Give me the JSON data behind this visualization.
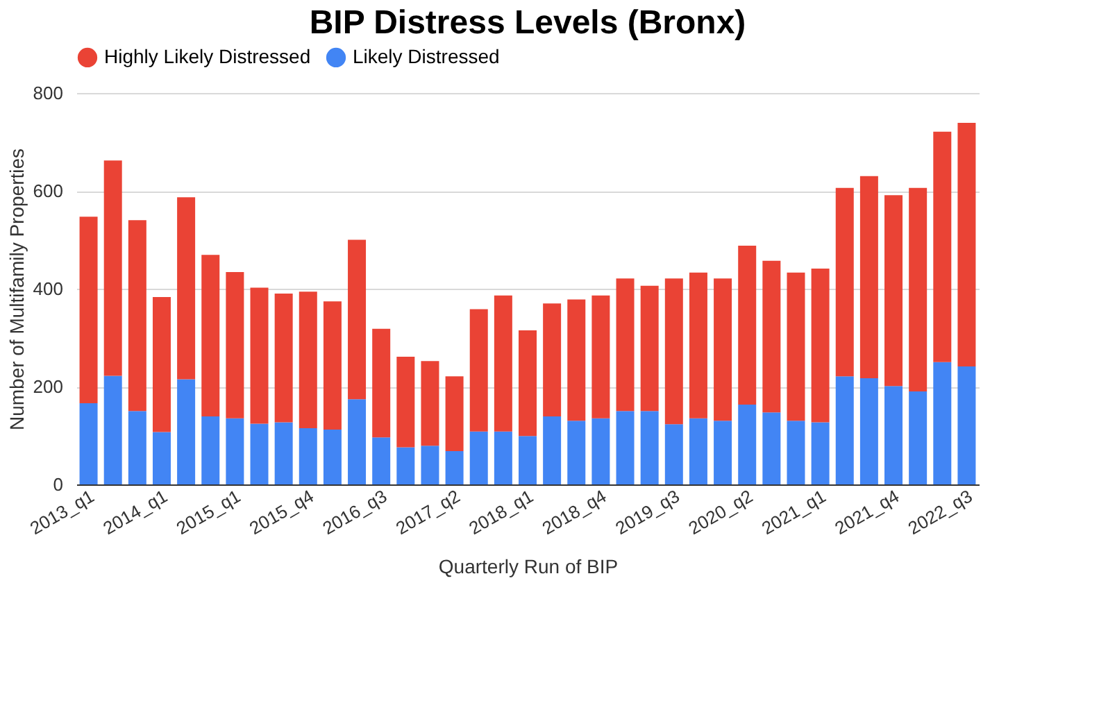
{
  "chart_data": {
    "type": "bar",
    "stacked": true,
    "title": "BIP Distress Levels (Bronx)",
    "xlabel": "Quarterly Run of BIP",
    "ylabel": "Number of Multifamily Properties",
    "categories": [
      "2013_q1",
      null,
      null,
      "2014_q1",
      null,
      null,
      "2015_q1",
      null,
      null,
      "2015_q4",
      null,
      null,
      "2016_q3",
      null,
      null,
      "2017_q2",
      null,
      null,
      "2018_q1",
      null,
      null,
      "2018_q4",
      null,
      null,
      "2019_q3",
      null,
      null,
      "2020_q2",
      null,
      null,
      "2021_q1",
      null,
      null,
      "2021_q4",
      null,
      null,
      "2022_q3"
    ],
    "series": [
      {
        "name": "Likely Distressed",
        "color": "#4285f4",
        "values": [
          166,
          222,
          150,
          107,
          215,
          139,
          135,
          124,
          127,
          115,
          112,
          174,
          96,
          76,
          79,
          68,
          108,
          108,
          99,
          139,
          130,
          135,
          150,
          150,
          123,
          135,
          130,
          163,
          147,
          130,
          127,
          221,
          217,
          201,
          190,
          250,
          241
        ]
      },
      {
        "name": "Highly Likely Distressed",
        "color": "#ea4335",
        "values": [
          381,
          440,
          390,
          276,
          372,
          330,
          299,
          278,
          263,
          279,
          262,
          326,
          222,
          185,
          173,
          153,
          250,
          278,
          216,
          231,
          248,
          251,
          271,
          256,
          298,
          298,
          291,
          325,
          310,
          303,
          314,
          385,
          413,
          390,
          416,
          471,
          498
        ]
      }
    ],
    "ylim": [
      0,
      800
    ],
    "yticks": [
      0,
      200,
      400,
      600,
      800
    ],
    "grid": "y",
    "legend": "top"
  }
}
